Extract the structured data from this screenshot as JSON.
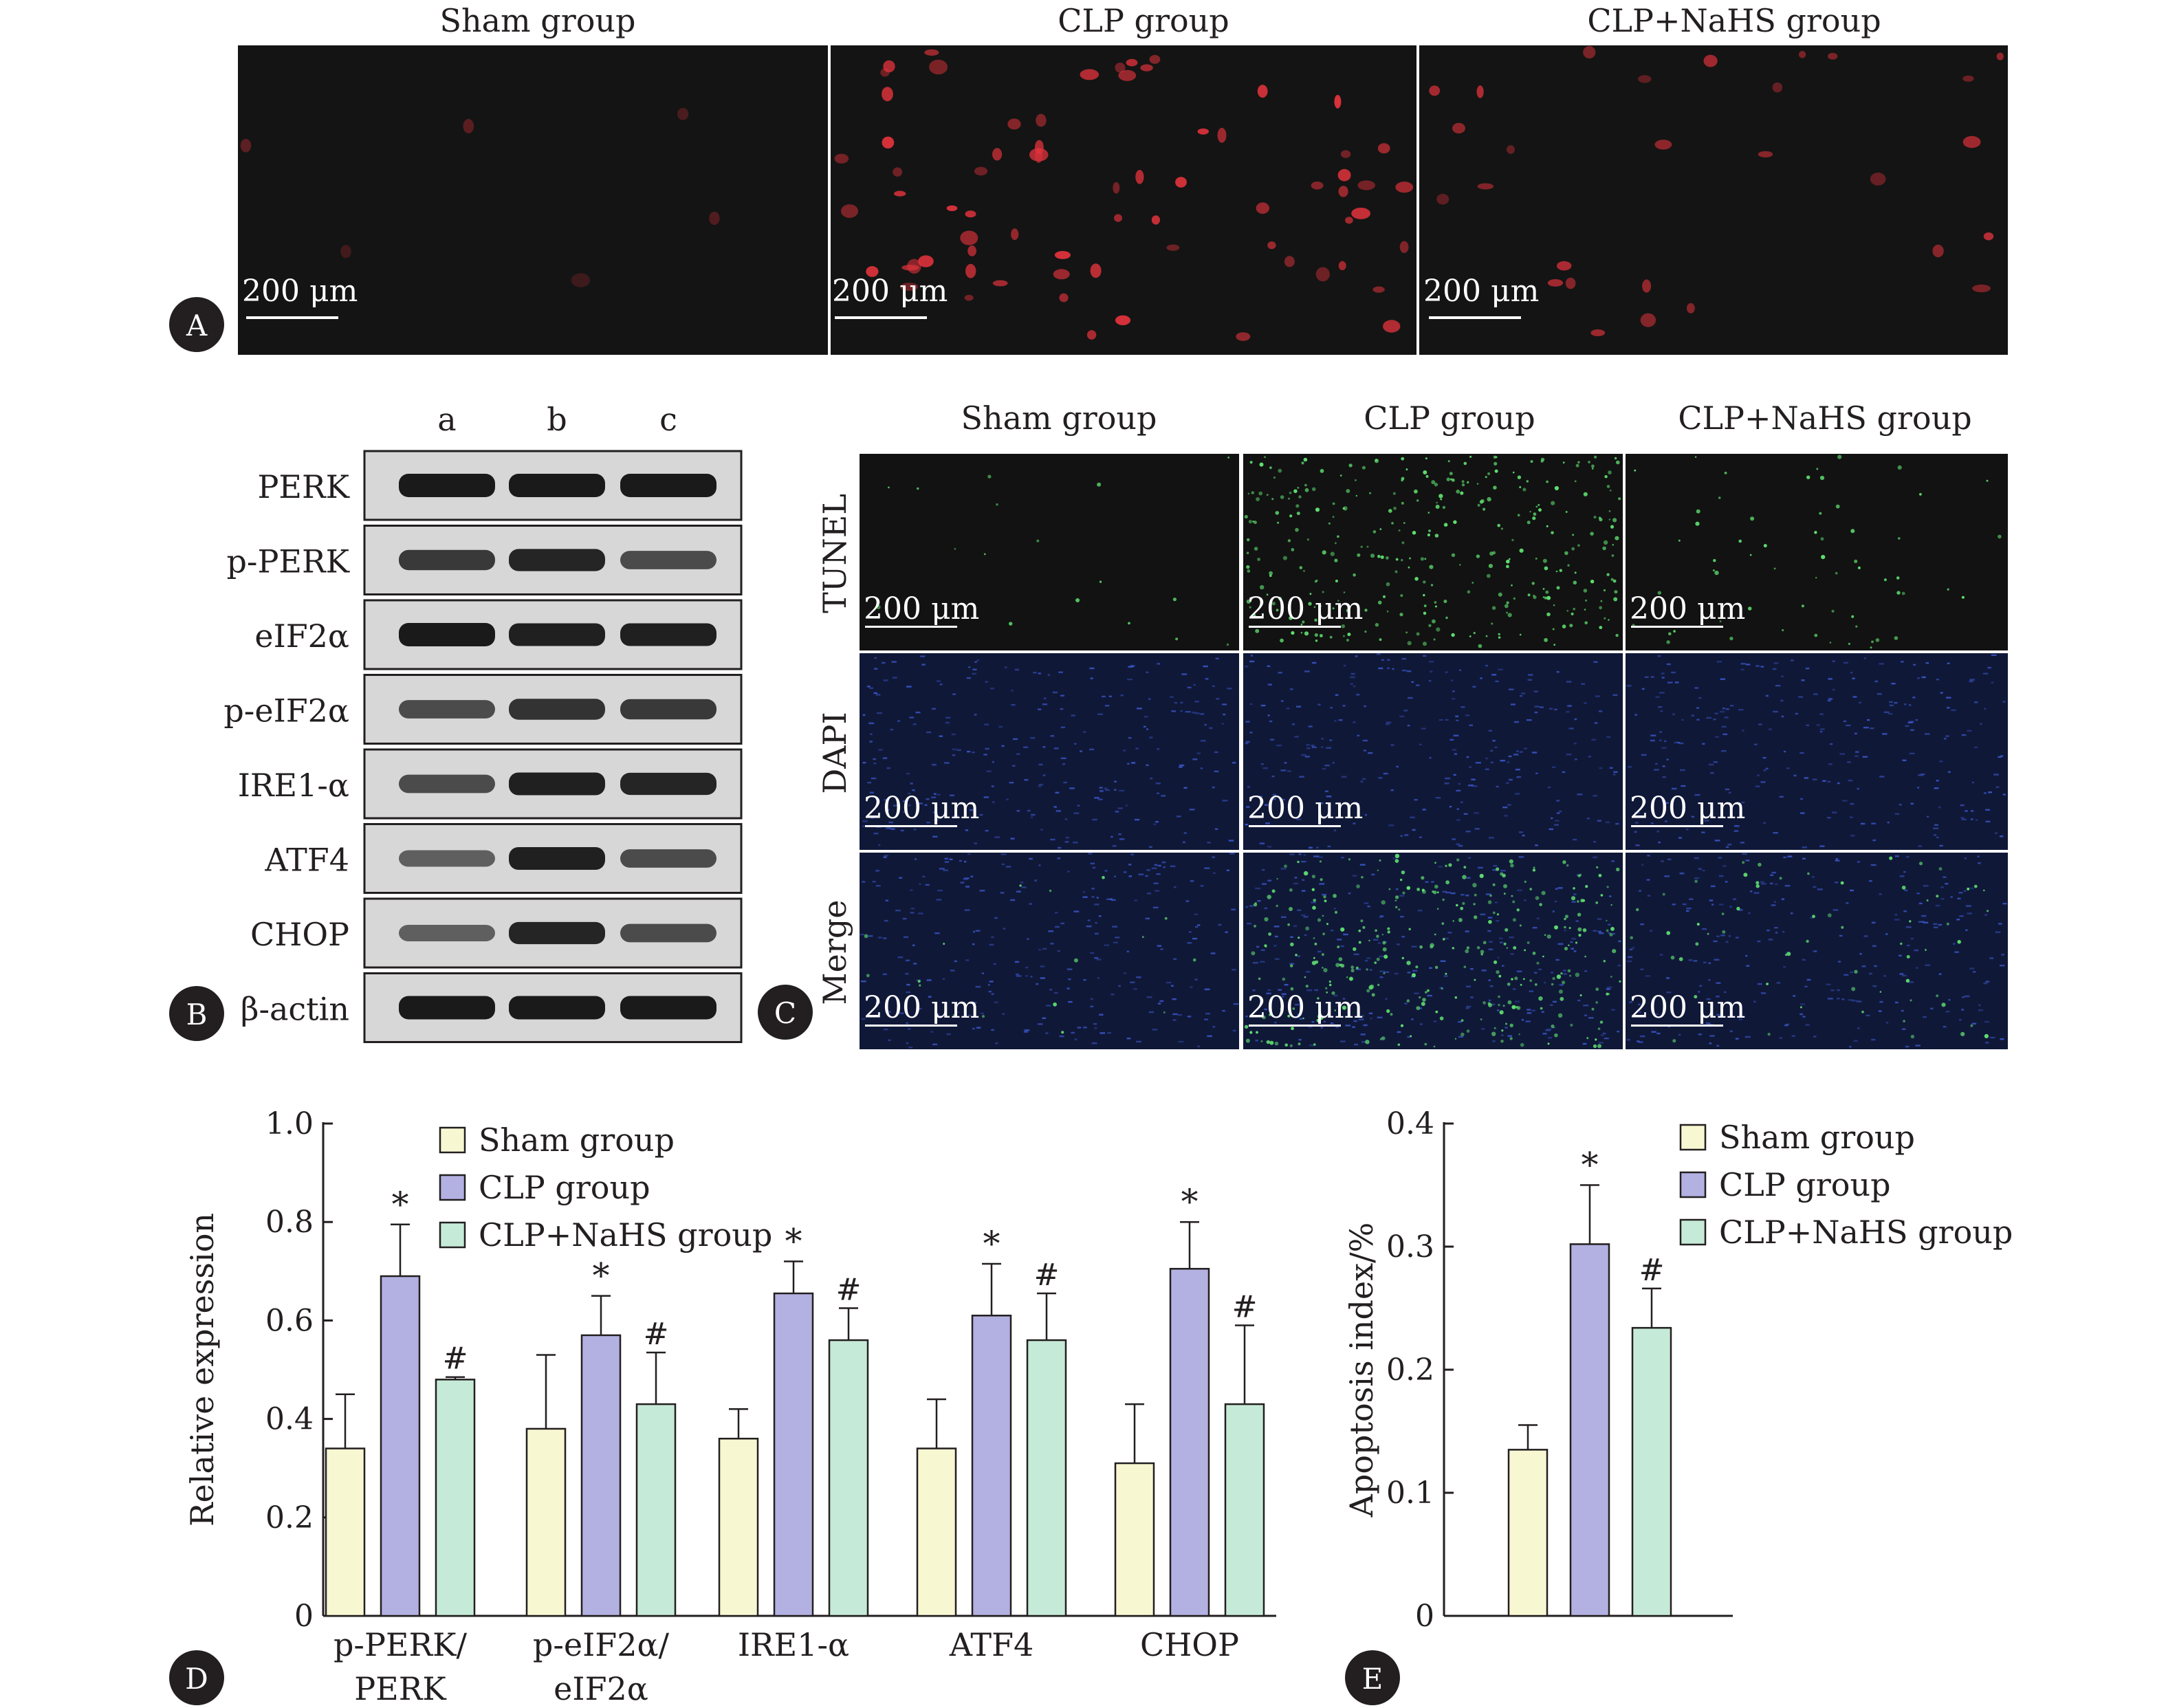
{
  "panel_labels": {
    "a": "A",
    "b": "B",
    "c": "C",
    "d": "D",
    "e": "E"
  },
  "colors": {
    "sham": "#f7f7d2",
    "clp": "#b3b1e1",
    "clp_nahs": "#c6ead8",
    "axis": "#231f20",
    "tunel": "#5fe070",
    "dapi": "#3d5cd6",
    "red_stain": "#e2333c",
    "micrograph_bg": "#141414"
  },
  "panel_a": {
    "columns": [
      "Sham group",
      "CLP group",
      "CLP+NaHS group"
    ],
    "scale_bar": "200 μm"
  },
  "panel_b": {
    "lanes": [
      "a",
      "b",
      "c"
    ],
    "proteins": [
      "PERK",
      "p-PERK",
      "eIF2α",
      "p-eIF2α",
      "IRE1-α",
      "ATF4",
      "CHOP",
      "β-actin"
    ],
    "band_intensity": [
      [
        1.0,
        1.0,
        1.0
      ],
      [
        0.75,
        0.9,
        0.6
      ],
      [
        1.0,
        0.95,
        0.95
      ],
      [
        0.6,
        0.8,
        0.75
      ],
      [
        0.6,
        0.95,
        0.9
      ],
      [
        0.45,
        0.95,
        0.6
      ],
      [
        0.45,
        0.9,
        0.6
      ],
      [
        1.0,
        1.0,
        1.0
      ]
    ]
  },
  "panel_c": {
    "columns": [
      "Sham group",
      "CLP group",
      "CLP+NaHS group"
    ],
    "rows": [
      "TUNEL",
      "DAPI",
      "Merge"
    ],
    "scale_bar": "200 μm"
  },
  "chart_data": [
    {
      "type": "bar",
      "panel": "D",
      "title": "",
      "xlabel": "",
      "ylabel": "Relative expression",
      "categories": [
        "p-PERK/ PERK",
        "p-eIF2α/ eIF2α",
        "IRE1-α",
        "ATF4",
        "CHOP"
      ],
      "category_lines": [
        [
          "p-PERK/",
          "PERK"
        ],
        [
          "p-eIF2α/",
          "eIF2α"
        ],
        [
          "IRE1-α"
        ],
        [
          "ATF4"
        ],
        [
          "CHOP"
        ]
      ],
      "series": [
        {
          "name": "Sham group",
          "values": [
            0.34,
            0.38,
            0.36,
            0.34,
            0.31
          ],
          "error": [
            0.11,
            0.15,
            0.06,
            0.1,
            0.12
          ],
          "marks": [
            "",
            "",
            "",
            "",
            ""
          ]
        },
        {
          "name": "CLP group",
          "values": [
            0.69,
            0.57,
            0.655,
            0.61,
            0.705
          ],
          "error": [
            0.105,
            0.08,
            0.065,
            0.105,
            0.095
          ],
          "marks": [
            "*",
            "*",
            "*",
            "*",
            "*"
          ]
        },
        {
          "name": "CLP+NaHS group",
          "values": [
            0.48,
            0.43,
            0.56,
            0.56,
            0.43
          ],
          "error": [
            0.005,
            0.105,
            0.065,
            0.095,
            0.16
          ],
          "marks": [
            "#",
            "#",
            "#",
            "#",
            "#"
          ]
        }
      ],
      "ylim": [
        0,
        1.0
      ],
      "yticks": [
        "0",
        "0.2",
        "0.4",
        "0.6",
        "0.8",
        "1.0"
      ],
      "legend": "top-left",
      "grid": false
    },
    {
      "type": "bar",
      "panel": "E",
      "title": "",
      "xlabel": "",
      "ylabel": "Apoptosis index/%",
      "categories": [
        ""
      ],
      "series": [
        {
          "name": "Sham group",
          "values": [
            0.135
          ],
          "error": [
            0.02
          ],
          "marks": [
            ""
          ]
        },
        {
          "name": "CLP group",
          "values": [
            0.302
          ],
          "error": [
            0.048
          ],
          "marks": [
            "*"
          ]
        },
        {
          "name": "CLP+NaHS group",
          "values": [
            0.234
          ],
          "error": [
            0.032
          ],
          "marks": [
            "#"
          ]
        }
      ],
      "ylim": [
        0,
        0.4
      ],
      "yticks": [
        "0",
        "0.1",
        "0.2",
        "0.3",
        "0.4"
      ],
      "legend": "top-right",
      "grid": false
    }
  ]
}
